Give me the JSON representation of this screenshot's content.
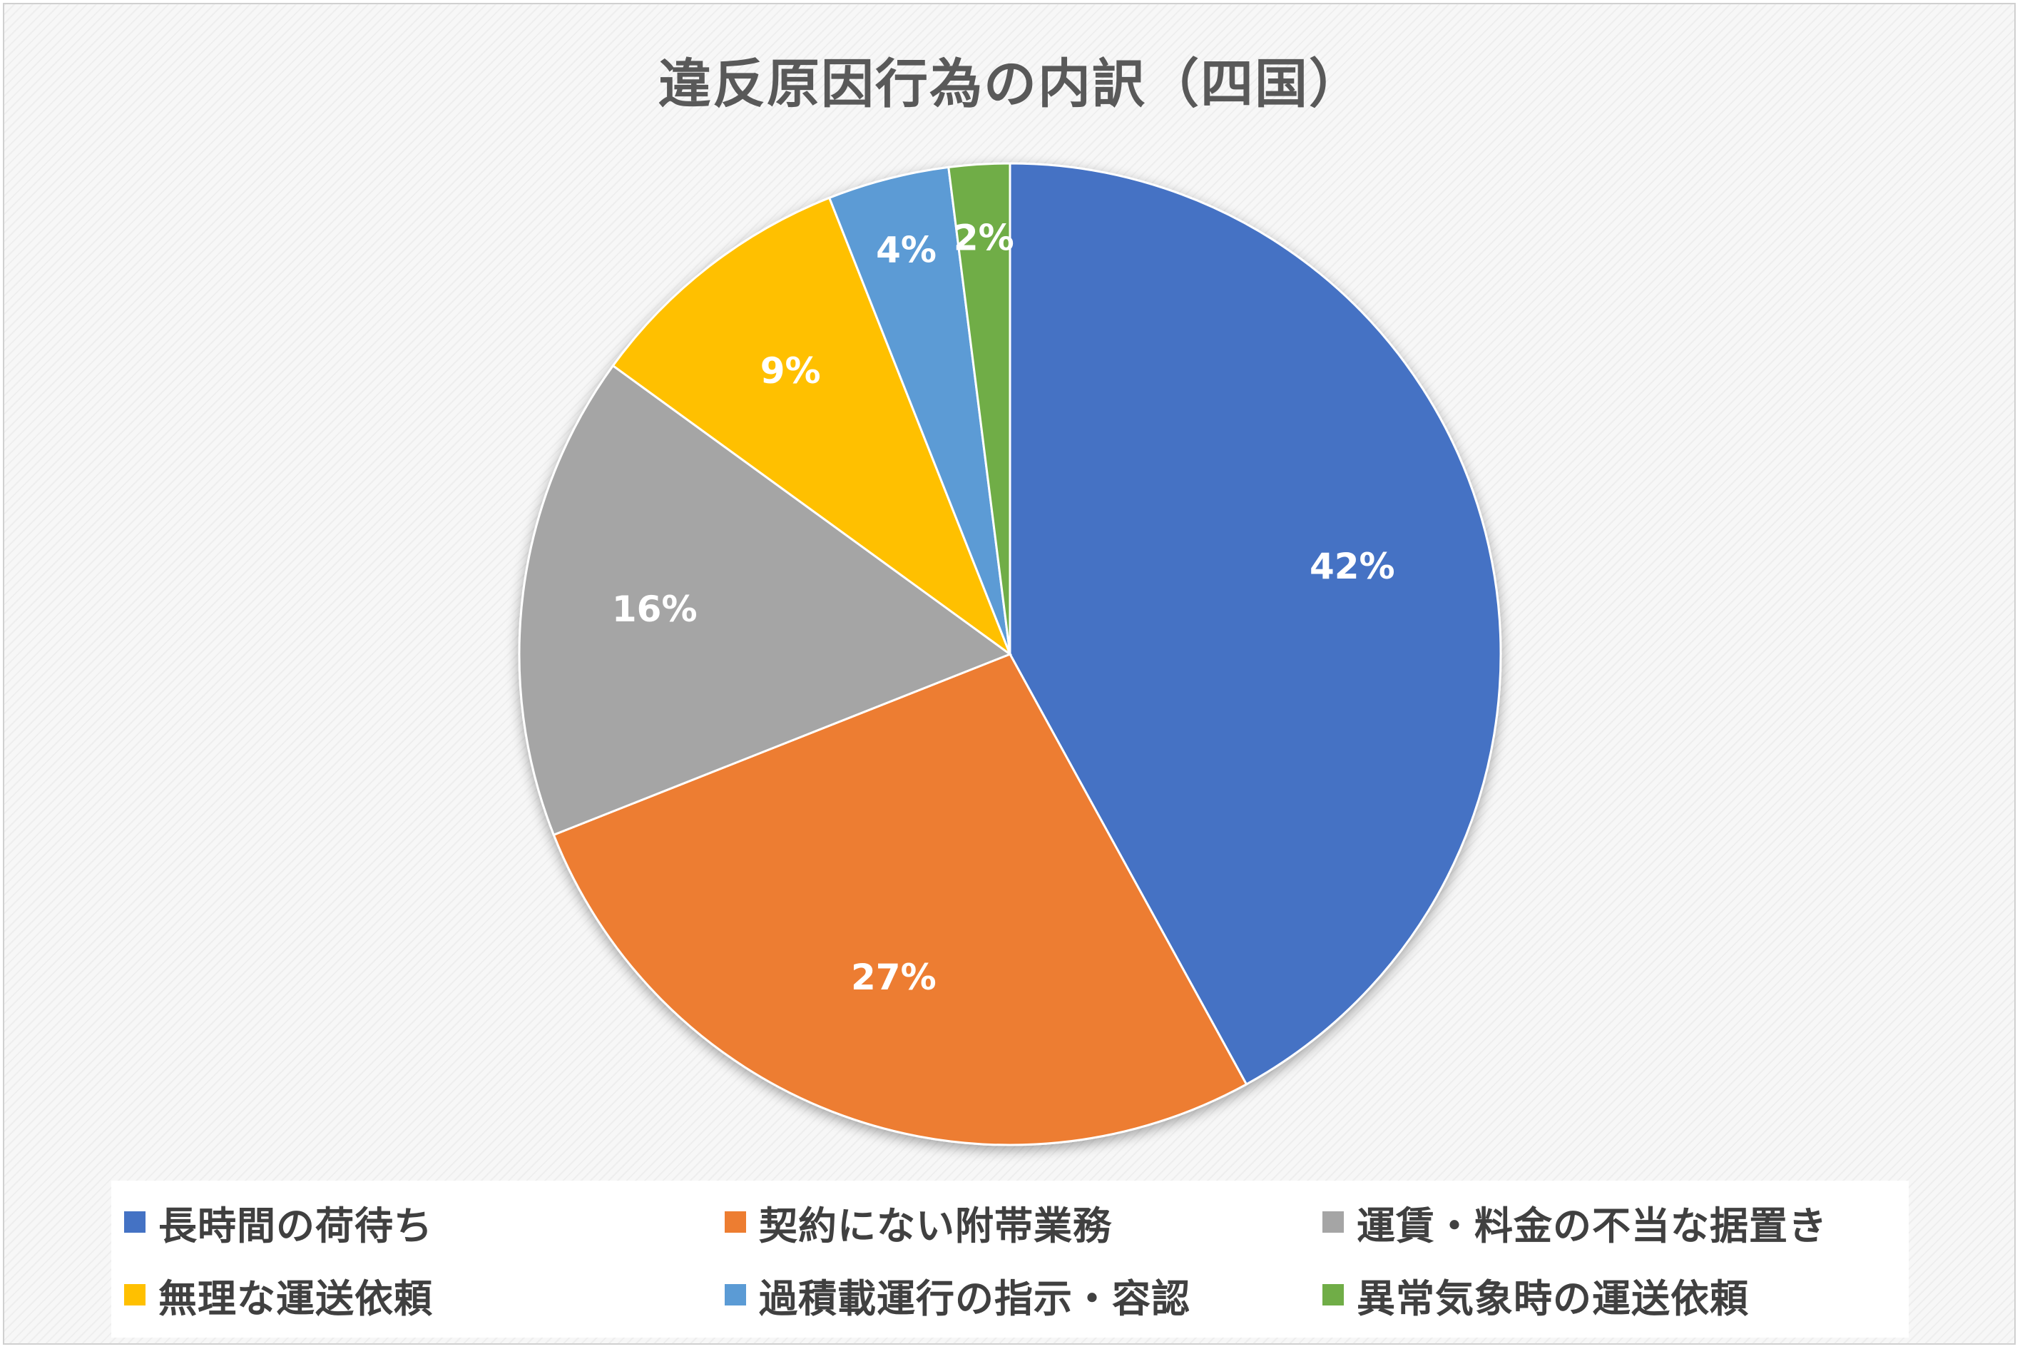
{
  "chart_data": {
    "type": "pie",
    "title": "違反原因行為の内訳（四国）",
    "categories": [
      "長時間の荷待ち",
      "契約にない附帯業務",
      "運賃・料金の不当な据置き",
      "無理な運送依頼",
      "過積載運行の指示・容認",
      "異常気象時の運送依頼"
    ],
    "values": [
      42,
      27,
      16,
      9,
      4,
      2
    ],
    "labels": [
      "42%",
      "27%",
      "16%",
      "9%",
      "4%",
      "2%"
    ],
    "colors": [
      "#4472C4",
      "#ED7D31",
      "#A5A5A5",
      "#FFC000",
      "#5B9BD5",
      "#70AD47"
    ],
    "legend_position": "bottom",
    "start_angle": "12 o'clock",
    "direction": "clockwise"
  }
}
